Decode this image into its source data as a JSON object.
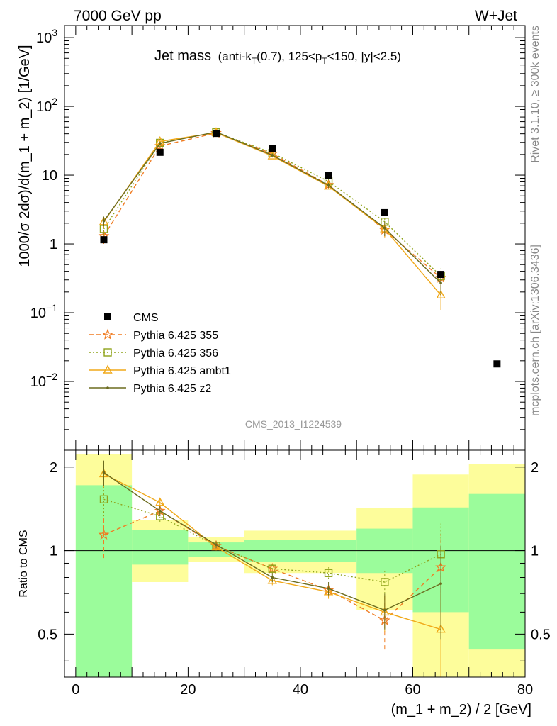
{
  "header": {
    "left": "7000 GeV pp",
    "right": "W+Jet"
  },
  "title": {
    "main": "Jet mass",
    "sub": "(anti-k",
    "sub_t": "T",
    "sub_rest": "(0.7), 125<p",
    "sub_t2": "T",
    "sub_rest2": "<150, |y|<2.5)"
  },
  "side_labels": {
    "rivet": "Rivet 3.1.10, ≥ 300k events",
    "arxiv": "mcplots.cern.ch [arXiv:1306.3436]"
  },
  "watermark": "CMS_2013_I1224539",
  "colors": {
    "cms": "#000000",
    "p355": "#f07c22",
    "p356": "#8ea31a",
    "ambt1": "#f0a818",
    "z2": "#6b6b1e",
    "band_green": "#9bfc9b",
    "band_yellow": "#fdfd9b"
  },
  "chart_data": [
    {
      "type": "line",
      "xlabel": "",
      "ylabel": "1000/σ 2dσ)/d(m_1 + m_2) [1/GeV]",
      "xlim": [
        -2,
        80
      ],
      "ylim": [
        0.001,
        1500
      ],
      "yscale": "log",
      "y_ticks": [
        {
          "value": 0.01,
          "base": "10",
          "exp": "−2"
        },
        {
          "value": 0.1,
          "base": "10",
          "exp": "−1"
        },
        {
          "value": 1,
          "base": "1",
          "exp": ""
        },
        {
          "value": 10,
          "base": "10",
          "exp": ""
        },
        {
          "value": 100,
          "base": "10",
          "exp": "2"
        },
        {
          "value": 1000,
          "base": "10",
          "exp": "3"
        }
      ],
      "legend_position": "lower-left",
      "series": [
        {
          "key": "cms",
          "name": "CMS",
          "marker": "square",
          "x": [
            5,
            15,
            25,
            35,
            45,
            55,
            65,
            75
          ],
          "y": [
            1.15,
            21.5,
            40.5,
            24.5,
            10.0,
            2.85,
            0.36,
            0.018
          ]
        },
        {
          "key": "p355",
          "name": "Pythia 6.425 355",
          "marker": "star",
          "dash": "dashed",
          "x": [
            5,
            15,
            25,
            35,
            45,
            55,
            65
          ],
          "y": [
            1.3,
            26.5,
            41.0,
            20.5,
            7.2,
            1.6,
            0.32
          ],
          "err": [
            0.3,
            1.5,
            1.5,
            1.0,
            0.6,
            0.35,
            0.1
          ]
        },
        {
          "key": "p356",
          "name": "Pythia 6.425 356",
          "marker": "open-square",
          "dash": "dotted",
          "x": [
            5,
            15,
            25,
            35,
            45,
            55,
            65
          ],
          "y": [
            1.65,
            29.5,
            42.0,
            21.0,
            8.1,
            2.1,
            0.34
          ],
          "err": [
            0.3,
            1.5,
            1.5,
            1.0,
            0.6,
            0.35,
            0.1
          ]
        },
        {
          "key": "ambt1",
          "name": "Pythia 6.425 ambt1",
          "marker": "open-triangle",
          "dash": "solid",
          "x": [
            5,
            15,
            25,
            35,
            45,
            55,
            65
          ],
          "y": [
            2.1,
            31.0,
            41.5,
            19.0,
            6.9,
            1.65,
            0.18
          ],
          "err": [
            0.35,
            1.5,
            1.5,
            1.0,
            0.6,
            0.4,
            0.07
          ]
        },
        {
          "key": "z2",
          "name": "Pythia 6.425 z2",
          "marker": "dot",
          "dash": "solid",
          "x": [
            5,
            15,
            25,
            35,
            45,
            55,
            65
          ],
          "y": [
            2.15,
            29.0,
            42.5,
            19.5,
            7.1,
            1.7,
            0.27
          ],
          "err": [
            0.35,
            1.5,
            1.5,
            1.0,
            0.6,
            0.4,
            0.09
          ]
        }
      ]
    },
    {
      "type": "line",
      "xlabel": "(m_1 + m_2) / 2 [GeV]",
      "ylabel": "Ratio to CMS",
      "xlim": [
        -2,
        80
      ],
      "ylim": [
        0.35,
        2.3
      ],
      "yscale": "log",
      "x_ticks": [
        "0",
        "20",
        "40",
        "60",
        "80"
      ],
      "y_ticks": [
        {
          "value": 0.5,
          "label": "0.5"
        },
        {
          "value": 1,
          "label": "1"
        },
        {
          "value": 2,
          "label": "2"
        }
      ],
      "bands": [
        {
          "x0": 0,
          "x1": 10,
          "green": [
            0.35,
            1.72
          ],
          "yellow": [
            0.35,
            2.22
          ]
        },
        {
          "x0": 10,
          "x1": 20,
          "green": [
            0.89,
            1.19
          ],
          "yellow": [
            0.77,
            1.29
          ]
        },
        {
          "x0": 20,
          "x1": 30,
          "green": [
            0.95,
            1.07
          ],
          "yellow": [
            0.91,
            1.12
          ]
        },
        {
          "x0": 30,
          "x1": 40,
          "green": [
            0.91,
            1.09
          ],
          "yellow": [
            0.83,
            1.18
          ]
        },
        {
          "x0": 40,
          "x1": 50,
          "green": [
            0.91,
            1.09
          ],
          "yellow": [
            0.83,
            1.18
          ]
        },
        {
          "x0": 50,
          "x1": 60,
          "green": [
            0.83,
            1.2
          ],
          "yellow": [
            0.61,
            1.42
          ]
        },
        {
          "x0": 60,
          "x1": 70,
          "green": [
            0.6,
            1.43
          ],
          "yellow": [
            0.35,
            1.88
          ]
        },
        {
          "x0": 70,
          "x1": 80,
          "green": [
            0.44,
            1.6
          ],
          "yellow": [
            0.35,
            2.05
          ]
        }
      ],
      "series": [
        {
          "key": "p355",
          "x": [
            5,
            15,
            25,
            35,
            45,
            55,
            65
          ],
          "y": [
            1.14,
            1.39,
            1.04,
            0.86,
            0.72,
            0.56,
            0.87
          ],
          "err": [
            0.2,
            0.06,
            0.03,
            0.03,
            0.04,
            0.12,
            0.28
          ]
        },
        {
          "key": "p356",
          "x": [
            5,
            15,
            25,
            35,
            45,
            55,
            65
          ],
          "y": [
            1.53,
            1.33,
            1.04,
            0.86,
            0.83,
            0.77,
            0.97
          ],
          "err": [
            0.2,
            0.06,
            0.03,
            0.03,
            0.04,
            0.09,
            0.28
          ]
        },
        {
          "key": "ambt1",
          "x": [
            5,
            15,
            25,
            35,
            45,
            55,
            65
          ],
          "y": [
            1.89,
            1.49,
            1.03,
            0.78,
            0.71,
            0.6,
            0.52
          ],
          "err": [
            0.2,
            0.06,
            0.03,
            0.03,
            0.04,
            0.09,
            0.18
          ]
        },
        {
          "key": "z2",
          "x": [
            5,
            15,
            25,
            35,
            45,
            55,
            65
          ],
          "y": [
            1.91,
            1.39,
            1.05,
            0.8,
            0.73,
            0.61,
            0.76
          ],
          "err": [
            0.2,
            0.06,
            0.03,
            0.03,
            0.04,
            0.09,
            0.28
          ]
        }
      ]
    }
  ]
}
